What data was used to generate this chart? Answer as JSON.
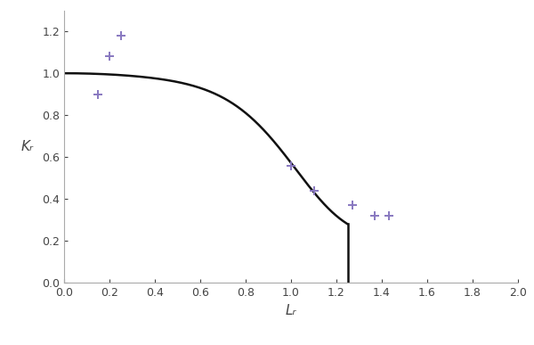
{
  "title": "",
  "xlabel": "Lᵣ",
  "ylabel": "Kᵣ",
  "xlim": [
    0.0,
    2.0
  ],
  "ylim": [
    0.0,
    1.3
  ],
  "xticks": [
    0.0,
    0.2,
    0.4,
    0.6,
    0.8,
    1.0,
    1.2,
    1.4,
    1.6,
    1.8,
    2.0
  ],
  "yticks": [
    0.0,
    0.2,
    0.4,
    0.6,
    0.8,
    1.0,
    1.2
  ],
  "Lr_max": 1.25,
  "data_points": [
    [
      0.15,
      0.9
    ],
    [
      0.2,
      1.08
    ],
    [
      0.25,
      1.18
    ],
    [
      1.0,
      0.56
    ],
    [
      1.1,
      0.44
    ],
    [
      1.27,
      0.37
    ],
    [
      1.37,
      0.32
    ],
    [
      1.43,
      0.32
    ]
  ],
  "marker_color": "#8878c0",
  "curve_color": "#111111",
  "curve_linewidth": 1.8,
  "background_color": "#ffffff",
  "xlabel_fontsize": 11,
  "ylabel_fontsize": 11,
  "tick_fontsize": 9,
  "spine_color": "#aaaaaa",
  "tick_color": "#444444"
}
